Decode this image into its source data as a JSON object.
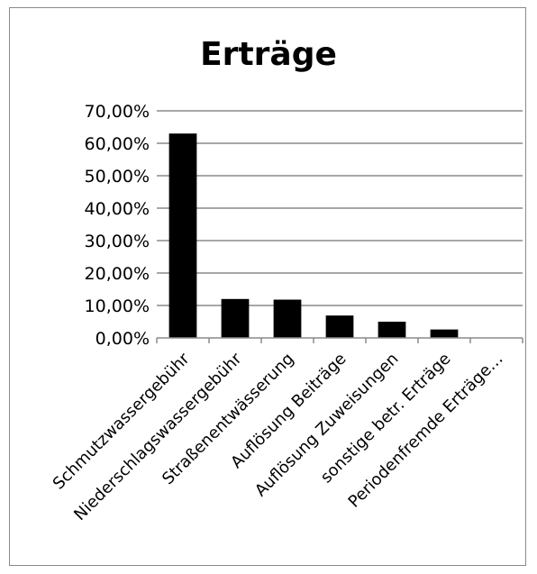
{
  "chart_data": {
    "type": "bar",
    "title": "Erträge",
    "categories": [
      "Schmutzwassergebühr",
      "Niederschlagswassergebühr",
      "Straßenentwässerung",
      "Auflösung Beiträge",
      "Auflösung Zuweisungen",
      "sonstige betr. Erträge",
      "Periodenfremde Erträge…"
    ],
    "values": [
      63.0,
      12.0,
      11.8,
      6.9,
      5.0,
      2.6,
      0.0
    ],
    "yticks": [
      "0,00%",
      "10,00%",
      "20,00%",
      "30,00%",
      "40,00%",
      "50,00%",
      "60,00%",
      "70,00%"
    ],
    "ylim": [
      0,
      70
    ],
    "grid": true,
    "legend": false,
    "bar_color": "#000000"
  }
}
